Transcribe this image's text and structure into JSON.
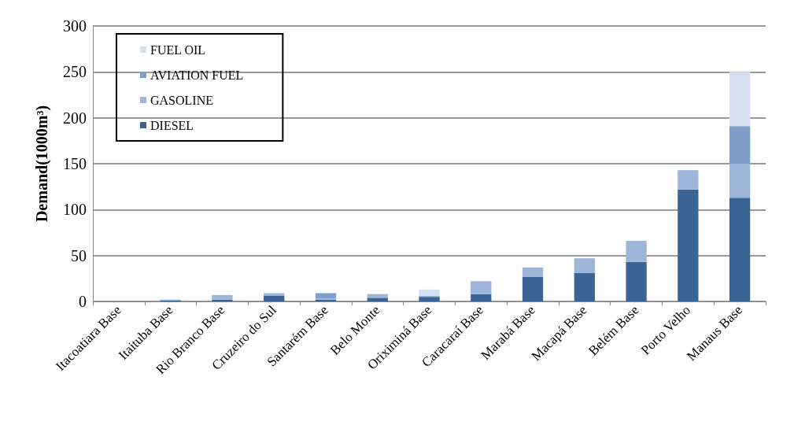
{
  "chart_data": {
    "type": "bar",
    "stacked": true,
    "ylabel": "Demand(1000m³)",
    "categories": [
      "Itacoatiara Base",
      "Itaituba Base",
      "Rio Branco Base",
      "Cruzeiro do Sul",
      "Santarém Base",
      "Belo Monte",
      "Oriximiná Base",
      "Caracaraí Base",
      "Marabá Base",
      "Macapá Base",
      "Belém Base",
      "Porto Velho",
      "Manaus Base"
    ],
    "series": [
      {
        "name": "DIESEL",
        "color": "#3a6496",
        "values": [
          0,
          1,
          2,
          6,
          2,
          4,
          5,
          8,
          27,
          31,
          43,
          122,
          113
        ]
      },
      {
        "name": "GASOLINE",
        "color": "#9db5d8",
        "values": [
          0,
          1,
          5,
          3,
          1,
          4,
          1,
          14,
          10,
          16,
          23,
          21,
          37
        ]
      },
      {
        "name": "AVIATION FUEL",
        "color": "#7f9fca",
        "values": [
          0,
          0,
          0,
          0,
          6,
          0,
          0,
          0,
          0,
          0,
          0,
          0,
          41
        ]
      },
      {
        "name": "FUEL OIL",
        "color": "#d5dff0",
        "values": [
          0,
          0,
          0,
          0,
          0,
          0,
          7,
          0,
          0,
          0,
          0,
          0,
          59
        ]
      }
    ],
    "ylim": [
      0,
      300
    ],
    "yticks": [
      0,
      50,
      100,
      150,
      200,
      250,
      300
    ],
    "grid": "y",
    "legend": "top left"
  }
}
